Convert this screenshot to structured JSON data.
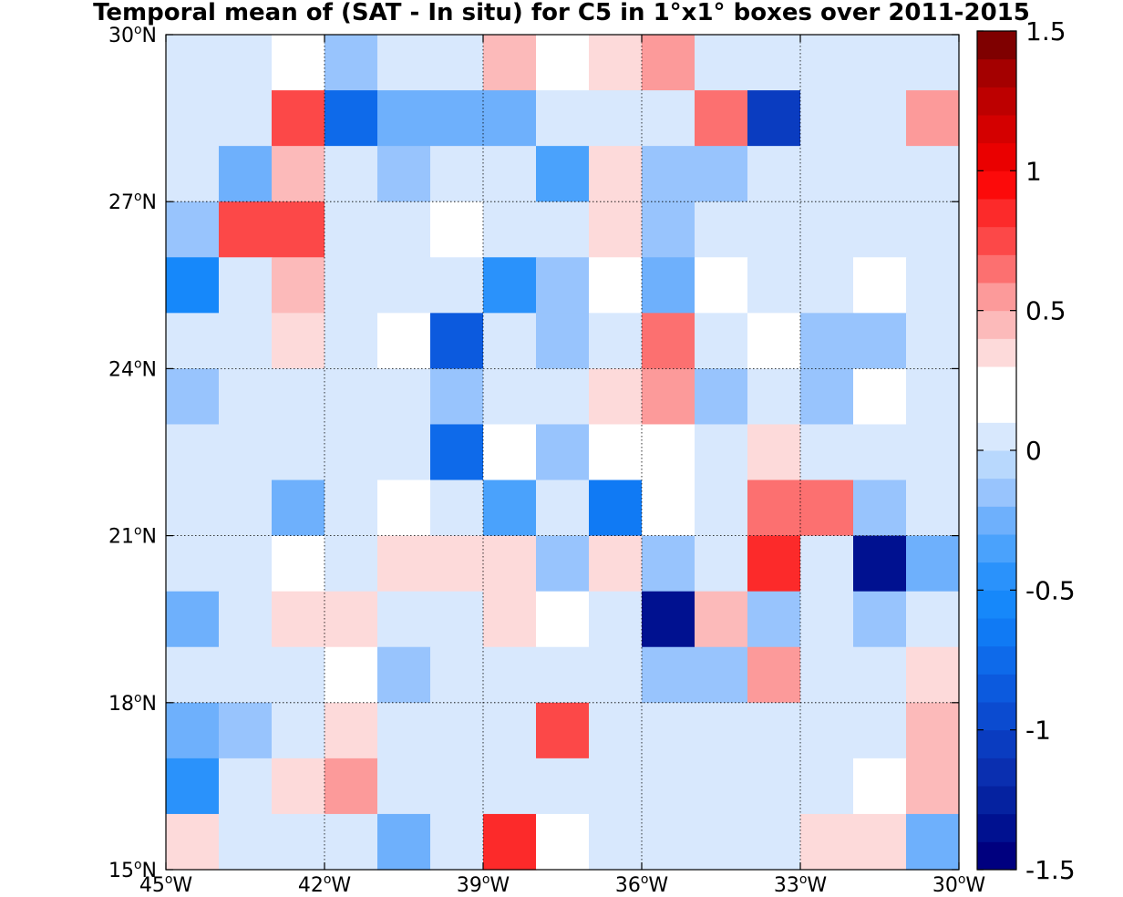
{
  "chart_data": {
    "type": "heatmap",
    "title": "Temporal mean of (SAT - In situ) for C5 in 1°x1° boxes over 2011-2015",
    "x_ticks": [
      {
        "value": -45,
        "deg": "45",
        "sym": "o",
        "hem": "W"
      },
      {
        "value": -42,
        "deg": "42",
        "sym": "o",
        "hem": "W"
      },
      {
        "value": -39,
        "deg": "39",
        "sym": "o",
        "hem": "W"
      },
      {
        "value": -36,
        "deg": "36",
        "sym": "o",
        "hem": "W"
      },
      {
        "value": -33,
        "deg": "33",
        "sym": "o",
        "hem": "W"
      },
      {
        "value": -30,
        "deg": "30",
        "sym": "o",
        "hem": "W"
      }
    ],
    "y_ticks": [
      {
        "value": 15,
        "deg": "15",
        "sym": "o",
        "hem": "N"
      },
      {
        "value": 18,
        "deg": "18",
        "sym": "o",
        "hem": "N"
      },
      {
        "value": 21,
        "deg": "21",
        "sym": "o",
        "hem": "N"
      },
      {
        "value": 24,
        "deg": "24",
        "sym": "o",
        "hem": "N"
      },
      {
        "value": 27,
        "deg": "27",
        "sym": "o",
        "hem": "N"
      },
      {
        "value": 30,
        "deg": "30",
        "sym": "o",
        "hem": "N"
      }
    ],
    "xlim": [
      -45,
      -30
    ],
    "ylim": [
      15,
      30
    ],
    "grid": "dotted",
    "colorbar": {
      "position": "right",
      "clim": [
        -1.5,
        1.5
      ],
      "levels": 30,
      "tick_values": [
        -1.5,
        -1,
        -0.5,
        0,
        0.5,
        1,
        1.5
      ],
      "tick_labels": [
        "-1.5",
        "-1",
        "-0.5",
        "0",
        "0.5",
        "1",
        "1.5"
      ]
    },
    "grid_lon_start": -45,
    "grid_lat_top": 30,
    "cell_deg": 1,
    "cells_north_to_south": [
      [
        0,
        0,
        0.25,
        -0.15,
        0,
        0,
        0.45,
        0.15,
        0.3,
        0.55,
        0,
        0,
        0,
        0,
        0
      ],
      [
        0,
        0,
        0.75,
        -0.75,
        -0.25,
        -0.25,
        -0.25,
        0,
        0,
        0,
        0.65,
        -1.05,
        0,
        0,
        0.55
      ],
      [
        0,
        -0.25,
        0.4,
        0,
        -0.15,
        0,
        0,
        -0.3,
        0.3,
        -0.15,
        -0.15,
        0,
        0,
        0,
        0
      ],
      [
        -0.15,
        0.75,
        0.75,
        0,
        0,
        0.15,
        0,
        0,
        0.3,
        -0.15,
        0,
        0,
        0,
        0,
        0
      ],
      [
        -0.6,
        0,
        0.4,
        0,
        0,
        0,
        -0.45,
        -0.15,
        0.15,
        -0.25,
        0.15,
        0,
        0,
        0.15,
        0
      ],
      [
        0,
        0,
        0.3,
        0,
        0.15,
        -0.85,
        0,
        -0.15,
        0,
        0.65,
        0,
        0.15,
        -0.15,
        -0.15,
        0
      ],
      [
        -0.15,
        0,
        0,
        0,
        0,
        -0.15,
        0,
        0,
        0.3,
        0.55,
        -0.15,
        0,
        -0.15,
        0.15,
        0
      ],
      [
        0,
        0,
        0,
        0,
        0,
        -0.75,
        0.15,
        -0.15,
        0.15,
        0.15,
        0,
        0.3,
        0,
        0,
        0
      ],
      [
        0,
        0,
        -0.25,
        0,
        0.15,
        0,
        -0.35,
        0,
        -0.65,
        0.15,
        0,
        0.65,
        0.65,
        -0.15,
        0
      ],
      [
        0,
        0,
        0.15,
        0,
        0.3,
        0.3,
        0.3,
        -0.15,
        0.3,
        -0.15,
        0,
        0.85,
        0,
        -1.4,
        -0.25
      ],
      [
        -0.25,
        0,
        0.3,
        0.3,
        0,
        0,
        0.3,
        0.15,
        0,
        -1.3,
        0.45,
        -0.15,
        0,
        -0.15,
        0
      ],
      [
        0,
        0,
        0,
        0.15,
        -0.15,
        0,
        0,
        0,
        0,
        -0.15,
        -0.15,
        0.55,
        0,
        0,
        0.3
      ],
      [
        -0.25,
        -0.15,
        0,
        0.3,
        0,
        0,
        0,
        0.75,
        0,
        0,
        0,
        0,
        0,
        0,
        0.45
      ],
      [
        -0.45,
        0,
        0.3,
        0.55,
        0,
        0,
        0,
        0,
        0,
        0,
        0,
        0,
        0,
        0.15,
        0.45
      ],
      [
        0.3,
        0,
        0,
        0,
        -0.25,
        0,
        0.85,
        0.15,
        0,
        0,
        0,
        0,
        0.3,
        0.3,
        -0.25
      ]
    ]
  },
  "colormap": [
    "#00007f",
    "#001190",
    "#0522a0",
    "#0a2fb0",
    "#0a3cc0",
    "#0b4bd0",
    "#0c5ade",
    "#0e6aea",
    "#107af4",
    "#1688fa",
    "#2a92fb",
    "#4aa2fc",
    "#6eb0fc",
    "#98c4fd",
    "#b8d8fd",
    "#d8e8fd",
    "#ffffff",
    "#ffffff",
    "#fddada",
    "#fcbaba",
    "#fc9a9a",
    "#fc7070",
    "#fc4848",
    "#fc2a2a",
    "#fc0a0a",
    "#ea0000",
    "#d40000",
    "#bd0000",
    "#a40000",
    "#7f0000"
  ],
  "colors": {
    "axis": "#000000",
    "gridline": "#000000",
    "background": "#ffffff"
  }
}
